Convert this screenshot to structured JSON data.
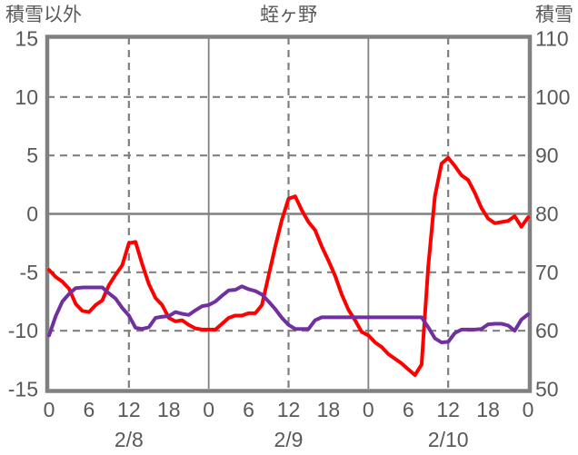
{
  "header": {
    "left_axis_title": "積雪以外",
    "title": "蛭ヶ野",
    "right_axis_title": "積雪"
  },
  "colors": {
    "background": "#FFFFFF",
    "frame": "#808080",
    "grid": "#808080",
    "text": "#595959",
    "red_line": "#FF0000",
    "purple_line": "#7030A0"
  },
  "chart_data": {
    "type": "line",
    "title": "蛭ヶ野",
    "legend": "none",
    "grid": true,
    "x_unit": "hour",
    "hours_start": 0,
    "hours_step": 1,
    "hours_count": 73,
    "x_axis": {
      "tick_hours": [
        0,
        6,
        12,
        18,
        24,
        30,
        36,
        42,
        48,
        54,
        60,
        66,
        72
      ],
      "tick_labels": [
        "0",
        "6",
        "12",
        "18",
        "0",
        "6",
        "12",
        "18",
        "0",
        "6",
        "12",
        "18",
        "0"
      ],
      "date_labels": [
        {
          "label": "2/8",
          "hour": 12
        },
        {
          "label": "2/9",
          "hour": 36
        },
        {
          "label": "2/10",
          "hour": 60
        }
      ],
      "solid_gridline_hours": [
        24,
        48
      ],
      "dashed_gridline_hours": [
        12,
        36,
        60
      ]
    },
    "left_axis": {
      "title": "積雪以外",
      "min": -15,
      "max": 15,
      "ticks": [
        15,
        10,
        5,
        0,
        -5,
        -10,
        -15
      ],
      "solid_gridlines": [
        0
      ],
      "dashed_gridlines": [
        10,
        5,
        -5,
        -10
      ]
    },
    "right_axis": {
      "title": "積雪",
      "min": 50,
      "max": 110,
      "ticks": [
        110,
        100,
        90,
        80,
        70,
        60,
        50
      ]
    },
    "series": [
      {
        "name": "red-line",
        "axis": "left",
        "color": "#FF0000",
        "values": [
          -4.8,
          -5.4,
          -5.8,
          -6.4,
          -7.7,
          -8.3,
          -8.4,
          -7.8,
          -7.4,
          -6.1,
          -5.2,
          -4.4,
          -2.5,
          -2.4,
          -4.3,
          -6.0,
          -7.2,
          -7.8,
          -8.9,
          -9.2,
          -9.1,
          -9.5,
          -9.8,
          -9.9,
          -9.9,
          -9.9,
          -9.4,
          -8.9,
          -8.7,
          -8.7,
          -8.5,
          -8.5,
          -7.8,
          -5.3,
          -2.8,
          -0.5,
          1.3,
          1.5,
          0.3,
          -0.7,
          -1.4,
          -2.8,
          -4.0,
          -5.3,
          -6.9,
          -8.2,
          -9.1,
          -10.1,
          -10.4,
          -11.0,
          -11.4,
          -12.0,
          -12.4,
          -12.8,
          -13.3,
          -13.8,
          -12.9,
          -4.5,
          1.5,
          4.3,
          4.8,
          4.1,
          3.3,
          2.9,
          1.8,
          0.5,
          -0.4,
          -0.8,
          -0.7,
          -0.6,
          -0.2,
          -1.1,
          -0.3
        ]
      },
      {
        "name": "purple-line",
        "axis": "right",
        "color": "#7030A0",
        "values": [
          59.2,
          62.5,
          65.0,
          66.3,
          67.3,
          67.4,
          67.4,
          67.4,
          67.4,
          66.4,
          65.5,
          63.9,
          62.6,
          60.5,
          60.3,
          60.6,
          62.2,
          62.4,
          62.5,
          63.2,
          62.9,
          62.7,
          63.5,
          64.2,
          64.4,
          65.0,
          66.0,
          66.9,
          67.0,
          67.6,
          67.1,
          66.8,
          66.2,
          65.0,
          63.7,
          62.2,
          61.0,
          60.3,
          60.3,
          60.3,
          61.8,
          62.3,
          62.3,
          62.3,
          62.3,
          62.3,
          62.3,
          62.3,
          62.3,
          62.3,
          62.3,
          62.3,
          62.3,
          62.3,
          62.3,
          62.3,
          62.3,
          60.6,
          58.7,
          58.0,
          58.1,
          59.6,
          60.2,
          60.2,
          60.2,
          60.3,
          61.1,
          61.2,
          61.2,
          60.9,
          60.0,
          61.9,
          62.8
        ]
      }
    ]
  }
}
